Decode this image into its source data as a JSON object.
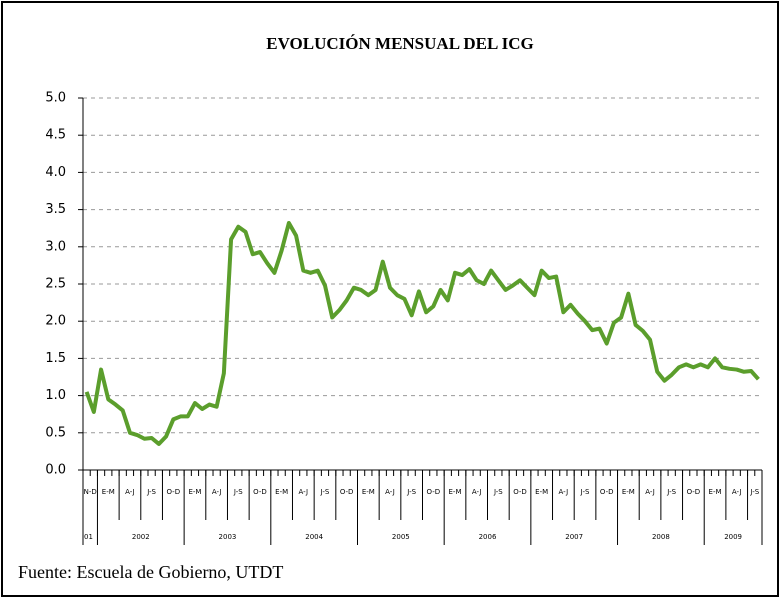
{
  "chart_data": {
    "type": "line",
    "title": "EVOLUCIÓN MENSUAL DEL ICG",
    "period_labels": [
      "N-D",
      "E-M",
      "A-J",
      "J-S",
      "O-D",
      "E-M",
      "A-J",
      "J-S",
      "O-D",
      "E-M",
      "A-J",
      "J-S",
      "O-D",
      "E-M",
      "A-J",
      "J-S",
      "O-D",
      "E-M",
      "A-J",
      "J-S",
      "O-D",
      "E-M",
      "A-J",
      "J-S",
      "O-D",
      "E-M",
      "A-J",
      "J-S",
      "O-D",
      "E-M",
      "A-J",
      "J-S"
    ],
    "year_labels": [
      "01",
      "2002",
      "2003",
      "2004",
      "2005",
      "2006",
      "2007",
      "2008",
      "2009"
    ],
    "series": [
      {
        "name": "ICG",
        "color": "#5b9e2c",
        "values": [
          1.05,
          0.78,
          1.35,
          0.95,
          0.88,
          0.8,
          0.5,
          0.47,
          0.42,
          0.43,
          0.35,
          0.45,
          0.68,
          0.72,
          0.72,
          0.9,
          0.82,
          0.88,
          0.85,
          1.3,
          3.1,
          3.27,
          3.2,
          2.9,
          2.93,
          2.78,
          2.65,
          2.95,
          3.32,
          3.15,
          2.68,
          2.65,
          2.68,
          2.48,
          2.05,
          2.15,
          2.28,
          2.45,
          2.42,
          2.35,
          2.42,
          2.8,
          2.45,
          2.35,
          2.3,
          2.08,
          2.4,
          2.12,
          2.2,
          2.42,
          2.28,
          2.65,
          2.62,
          2.7,
          2.55,
          2.5,
          2.68,
          2.55,
          2.42,
          2.48,
          2.55,
          2.45,
          2.35,
          2.68,
          2.58,
          2.6,
          2.12,
          2.22,
          2.1,
          2.0,
          1.88,
          1.9,
          1.7,
          1.98,
          2.05,
          2.37,
          1.95,
          1.87,
          1.75,
          1.32,
          1.2,
          1.28,
          1.38,
          1.42,
          1.38,
          1.42,
          1.38,
          1.5,
          1.38,
          1.36,
          1.35,
          1.32,
          1.33,
          1.22
        ]
      }
    ],
    "ylim": [
      0,
      5
    ],
    "yticks": [
      {
        "value": 0,
        "label": "0.0"
      },
      {
        "value": 0.5,
        "label": "0.5"
      },
      {
        "value": 1,
        "label": "1.0"
      },
      {
        "value": 1.5,
        "label": "1.5"
      },
      {
        "value": 2,
        "label": "2.0"
      },
      {
        "value": 2.5,
        "label": "2.5"
      },
      {
        "value": 3,
        "label": "3.0"
      },
      {
        "value": 3.5,
        "label": "3.5"
      },
      {
        "value": 4,
        "label": "4.0"
      },
      {
        "value": 4.5,
        "label": "4.5"
      },
      {
        "value": 5,
        "label": "5.0"
      }
    ],
    "grid": true,
    "source": "Fuente: Escuela de Gobierno, UTDT"
  }
}
